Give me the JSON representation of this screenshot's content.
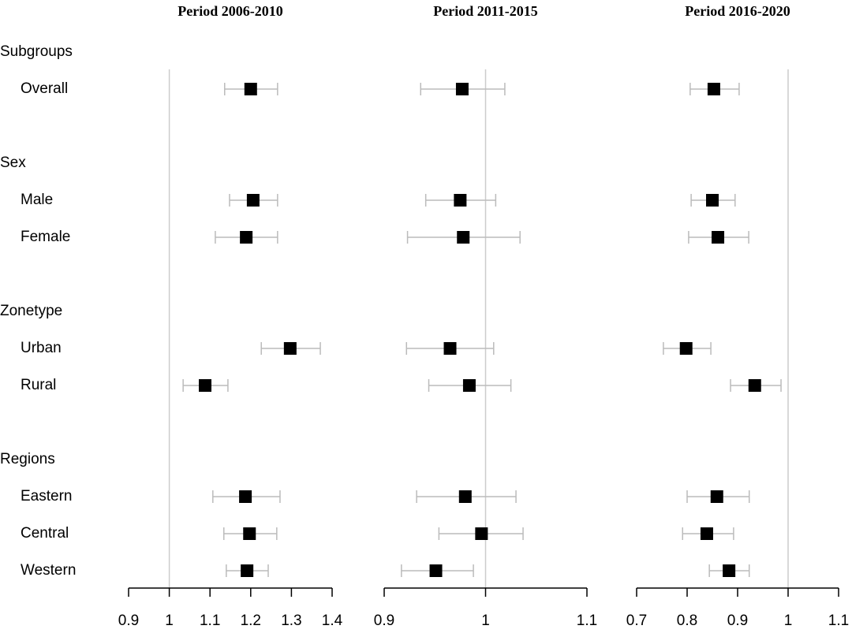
{
  "groups": [
    {
      "name": "Subgroups",
      "items": [
        "Overall"
      ]
    },
    {
      "name": "Sex",
      "items": [
        "Male",
        "Female"
      ]
    },
    {
      "name": "Zonetype",
      "items": [
        "Urban",
        "Rural"
      ]
    },
    {
      "name": "Regions",
      "items": [
        "Eastern",
        "Central",
        "Western"
      ]
    }
  ],
  "chart_data": [
    {
      "type": "forest",
      "title": "Period 2006-2010",
      "reference": 1,
      "color": "#000000",
      "ci_color": "#bbbbbb",
      "values": [
        1.2,
        1.206,
        1.189,
        1.297,
        1.088,
        1.187,
        1.197,
        1.191
      ],
      "lower": [
        1.136,
        1.148,
        1.113,
        1.226,
        1.034,
        1.107,
        1.134,
        1.14
      ],
      "upper": [
        1.266,
        1.266,
        1.266,
        1.371,
        1.144,
        1.272,
        1.264,
        1.243
      ],
      "xlim": [
        0.9,
        1.4
      ],
      "xticks": [
        0.9,
        1,
        1.1,
        1.2,
        1.3,
        1.4
      ]
    },
    {
      "type": "forest",
      "title": "Period 2011-2015",
      "reference": 1,
      "color": "#000000",
      "ci_color": "#bbbbbb",
      "values": [
        0.977,
        0.975,
        0.978,
        0.965,
        0.984,
        0.98,
        0.996,
        0.951
      ],
      "lower": [
        0.936,
        0.941,
        0.923,
        0.922,
        0.944,
        0.932,
        0.954,
        0.917
      ],
      "upper": [
        1.019,
        1.01,
        1.034,
        1.008,
        1.025,
        1.03,
        1.037,
        0.988
      ],
      "xlim": [
        0.9,
        1.1
      ],
      "xticks": [
        0.9,
        1,
        1.1
      ]
    },
    {
      "type": "forest",
      "title": "Period 2016-2020",
      "reference": 1,
      "color": "#000000",
      "ci_color": "#bbbbbb",
      "values": [
        0.853,
        0.85,
        0.861,
        0.798,
        0.934,
        0.859,
        0.839,
        0.883
      ],
      "lower": [
        0.806,
        0.808,
        0.803,
        0.753,
        0.886,
        0.8,
        0.791,
        0.844
      ],
      "upper": [
        0.903,
        0.895,
        0.922,
        0.847,
        0.986,
        0.923,
        0.892,
        0.923
      ],
      "xlim": [
        0.7,
        1.1
      ],
      "xticks": [
        0.7,
        0.8,
        0.9,
        1,
        1.1
      ]
    }
  ]
}
